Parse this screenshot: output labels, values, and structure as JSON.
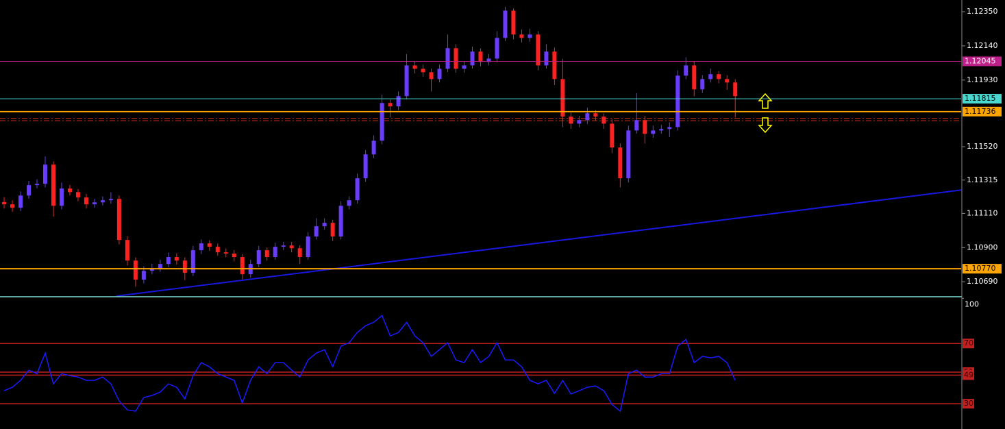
{
  "chart_data": [
    {
      "type": "candlestick",
      "xlim": [
        -0.5,
        116.5
      ],
      "ylim": [
        1.10602,
        1.12422
      ],
      "yticks": [
        {
          "value": 1.1235,
          "label": "1.12350"
        },
        {
          "value": 1.1214,
          "label": "1.12140"
        },
        {
          "value": 1.1193,
          "label": "1.11930"
        },
        {
          "value": 1.1152,
          "label": "1.11520"
        },
        1.11315,
        {
          "value": 1.1111,
          "label": "1.11110"
        },
        {
          "value": 1.109,
          "label": "1.10900"
        },
        {
          "value": 1.1069,
          "label": "1.10690"
        }
      ],
      "up_color": "#6a3cff",
      "down_color": "#ff2020",
      "ohlc": [
        [
          1.1118,
          1.1121,
          1.1114,
          1.11166
        ],
        [
          1.11166,
          1.1119,
          1.1112,
          1.11145
        ],
        [
          1.11145,
          1.11245,
          1.11125,
          1.1122
        ],
        [
          1.1122,
          1.1131,
          1.112,
          1.11284
        ],
        [
          1.11284,
          1.1132,
          1.11265,
          1.11292
        ],
        [
          1.11292,
          1.1146,
          1.1127,
          1.1141
        ],
        [
          1.1141,
          1.1143,
          1.1109,
          1.11157
        ],
        [
          1.11157,
          1.113,
          1.11135,
          1.11263
        ],
        [
          1.11263,
          1.11285,
          1.1122,
          1.11241
        ],
        [
          1.11241,
          1.1126,
          1.11185,
          1.11208
        ],
        [
          1.11208,
          1.1123,
          1.1114,
          1.11166
        ],
        [
          1.11166,
          1.112,
          1.11145,
          1.11178
        ],
        [
          1.11178,
          1.11215,
          1.1116,
          1.11191
        ],
        [
          1.11191,
          1.1124,
          1.1117,
          1.11199
        ],
        [
          1.11199,
          1.1122,
          1.1092,
          1.10947
        ],
        [
          1.10947,
          1.1097,
          1.1079,
          1.1082
        ],
        [
          1.1082,
          1.1084,
          1.1066,
          1.10703
        ],
        [
          1.10703,
          1.10785,
          1.1068,
          1.10757
        ],
        [
          1.10757,
          1.108,
          1.10735,
          1.1077
        ],
        [
          1.1077,
          1.10825,
          1.1075,
          1.10799
        ],
        [
          1.10799,
          1.1087,
          1.1078,
          1.10842
        ],
        [
          1.10842,
          1.10865,
          1.10795,
          1.1082
        ],
        [
          1.1082,
          1.1084,
          1.107,
          1.10745
        ],
        [
          1.10745,
          1.1091,
          1.10725,
          1.10884
        ],
        [
          1.10884,
          1.1095,
          1.1086,
          1.10926
        ],
        [
          1.10926,
          1.10945,
          1.1088,
          1.10905
        ],
        [
          1.10905,
          1.10925,
          1.1085,
          1.10871
        ],
        [
          1.10871,
          1.10895,
          1.1084,
          1.10863
        ],
        [
          1.10863,
          1.10885,
          1.10815,
          1.10842
        ],
        [
          1.10842,
          1.1086,
          1.10705,
          1.10736
        ],
        [
          1.10736,
          1.10825,
          1.10715,
          1.10799
        ],
        [
          1.10799,
          1.1091,
          1.1078,
          1.10884
        ],
        [
          1.10884,
          1.109,
          1.1082,
          1.10842
        ],
        [
          1.10842,
          1.1093,
          1.10825,
          1.10905
        ],
        [
          1.10905,
          1.10935,
          1.10885,
          1.10913
        ],
        [
          1.10913,
          1.10935,
          1.1087,
          1.10896
        ],
        [
          1.10896,
          1.10915,
          1.108,
          1.10842
        ],
        [
          1.10842,
          1.10995,
          1.10825,
          1.10968
        ],
        [
          1.10968,
          1.1108,
          1.1095,
          1.11031
        ],
        [
          1.11031,
          1.1108,
          1.1101,
          1.11052
        ],
        [
          1.11052,
          1.1107,
          1.1094,
          1.10968
        ],
        [
          1.10968,
          1.11185,
          1.1095,
          1.11157
        ],
        [
          1.11157,
          1.11215,
          1.11135,
          1.11191
        ],
        [
          1.11191,
          1.11355,
          1.1117,
          1.11326
        ],
        [
          1.11326,
          1.115,
          1.11305,
          1.11473
        ],
        [
          1.11473,
          1.1159,
          1.1145,
          1.11557
        ],
        [
          1.11557,
          1.1184,
          1.11535,
          1.11789
        ],
        [
          1.11789,
          1.1181,
          1.117,
          1.11768
        ],
        [
          1.11768,
          1.1186,
          1.11745,
          1.11831
        ],
        [
          1.11831,
          1.1209,
          1.1181,
          1.1202
        ],
        [
          1.1202,
          1.12045,
          1.1197,
          1.11999
        ],
        [
          1.11999,
          1.12025,
          1.1195,
          1.11978
        ],
        [
          1.11978,
          1.12,
          1.1186,
          1.11936
        ],
        [
          1.11936,
          1.12025,
          1.11915,
          1.11999
        ],
        [
          1.11999,
          1.1221,
          1.1198,
          1.12126
        ],
        [
          1.12126,
          1.1215,
          1.11975,
          1.11999
        ],
        [
          1.11999,
          1.12045,
          1.11975,
          1.1202
        ],
        [
          1.1202,
          1.12135,
          1.12,
          1.12105
        ],
        [
          1.12105,
          1.12125,
          1.12015,
          1.12041
        ],
        [
          1.12041,
          1.1209,
          1.1202,
          1.12062
        ],
        [
          1.12062,
          1.1223,
          1.1204,
          1.12189
        ],
        [
          1.12189,
          1.1238,
          1.1217,
          1.12357
        ],
        [
          1.12357,
          1.1237,
          1.1218,
          1.1221
        ],
        [
          1.1221,
          1.1224,
          1.1216,
          1.12189
        ],
        [
          1.12189,
          1.12245,
          1.12165,
          1.1221
        ],
        [
          1.1221,
          1.1223,
          1.1199,
          1.1202
        ],
        [
          1.1202,
          1.1215,
          1.12,
          1.12105
        ],
        [
          1.12105,
          1.1213,
          1.119,
          1.11936
        ],
        [
          1.11936,
          1.1206,
          1.1164,
          1.11705
        ],
        [
          1.11705,
          1.1173,
          1.1163,
          1.11662
        ],
        [
          1.11662,
          1.1171,
          1.1164,
          1.11684
        ],
        [
          1.11684,
          1.1176,
          1.1166,
          1.11726
        ],
        [
          1.11726,
          1.11745,
          1.1168,
          1.11705
        ],
        [
          1.11705,
          1.11725,
          1.1163,
          1.11662
        ],
        [
          1.11662,
          1.1169,
          1.1148,
          1.11515
        ],
        [
          1.11515,
          1.1154,
          1.1127,
          1.11326
        ],
        [
          1.11326,
          1.1165,
          1.113,
          1.1162
        ],
        [
          1.1162,
          1.1185,
          1.116,
          1.11684
        ],
        [
          1.11684,
          1.1171,
          1.1154,
          1.11599
        ],
        [
          1.11599,
          1.1165,
          1.11575,
          1.1162
        ],
        [
          1.1162,
          1.11655,
          1.116,
          1.11629
        ],
        [
          1.11629,
          1.1167,
          1.1158,
          1.11641
        ],
        [
          1.11641,
          1.1199,
          1.1162,
          1.11957
        ],
        [
          1.11957,
          1.1207,
          1.11935,
          1.1202
        ],
        [
          1.1202,
          1.12045,
          1.1183,
          1.11873
        ],
        [
          1.11873,
          1.1196,
          1.1185,
          1.11936
        ],
        [
          1.11936,
          1.12,
          1.11915,
          1.11966
        ],
        [
          1.11966,
          1.11985,
          1.1191,
          1.11936
        ],
        [
          1.11936,
          1.1196,
          1.1187,
          1.11915
        ],
        [
          1.11915,
          1.11935,
          1.117,
          1.11831
        ]
      ],
      "levels": [
        {
          "value": 1.12045,
          "color": "#c0208a"
        },
        {
          "value": 1.11815,
          "color": "#48d8d0"
        },
        {
          "value": 1.11736,
          "color": "#ffa500"
        },
        {
          "value": 1.1077,
          "label": "1.10770",
          "color": "#ffa500"
        }
      ],
      "dashed_levels": [
        1.11695,
        1.1168
      ],
      "dashed_color": "#d03010",
      "trendline": {
        "x": [
          13.7,
          116.5
        ],
        "y": [
          1.10602,
          1.11254
        ],
        "color": "#1818e0"
      }
    },
    {
      "type": "line",
      "ylim": [
        13.2,
        100.6
      ],
      "yticks": [
        100
      ],
      "levels": [
        70,
        51,
        49,
        30
      ],
      "level_color": "#c02020",
      "color": "#1a1aff",
      "values": [
        38.6,
        40.9,
        45.5,
        52.3,
        50,
        63.6,
        43.2,
        50,
        48.6,
        47.7,
        45.5,
        45.5,
        47.7,
        43.2,
        31.8,
        25.9,
        25,
        34.1,
        35.5,
        37.7,
        43.2,
        40.9,
        33.2,
        48.6,
        57.3,
        54.5,
        50,
        47.7,
        45.5,
        30.5,
        45.5,
        54.5,
        50,
        57.3,
        57.3,
        52.3,
        47.7,
        59.1,
        63.6,
        65.9,
        54.5,
        68.2,
        70.5,
        77.3,
        81.8,
        84.1,
        88.6,
        75,
        77.3,
        84.1,
        75,
        70.5,
        61.4,
        65.9,
        70.5,
        59.1,
        57.3,
        65.9,
        57.3,
        61.4,
        70.5,
        59.1,
        59.1,
        54.5,
        45.5,
        43.2,
        45.5,
        36.8,
        45.5,
        36.4,
        38.6,
        40.9,
        41.8,
        38.6,
        29.5,
        25,
        50,
        52.3,
        47.7,
        47.7,
        50,
        50,
        68.2,
        72.7,
        57.3,
        61.4,
        60.5,
        61.4,
        57.3,
        45.5
      ]
    }
  ]
}
